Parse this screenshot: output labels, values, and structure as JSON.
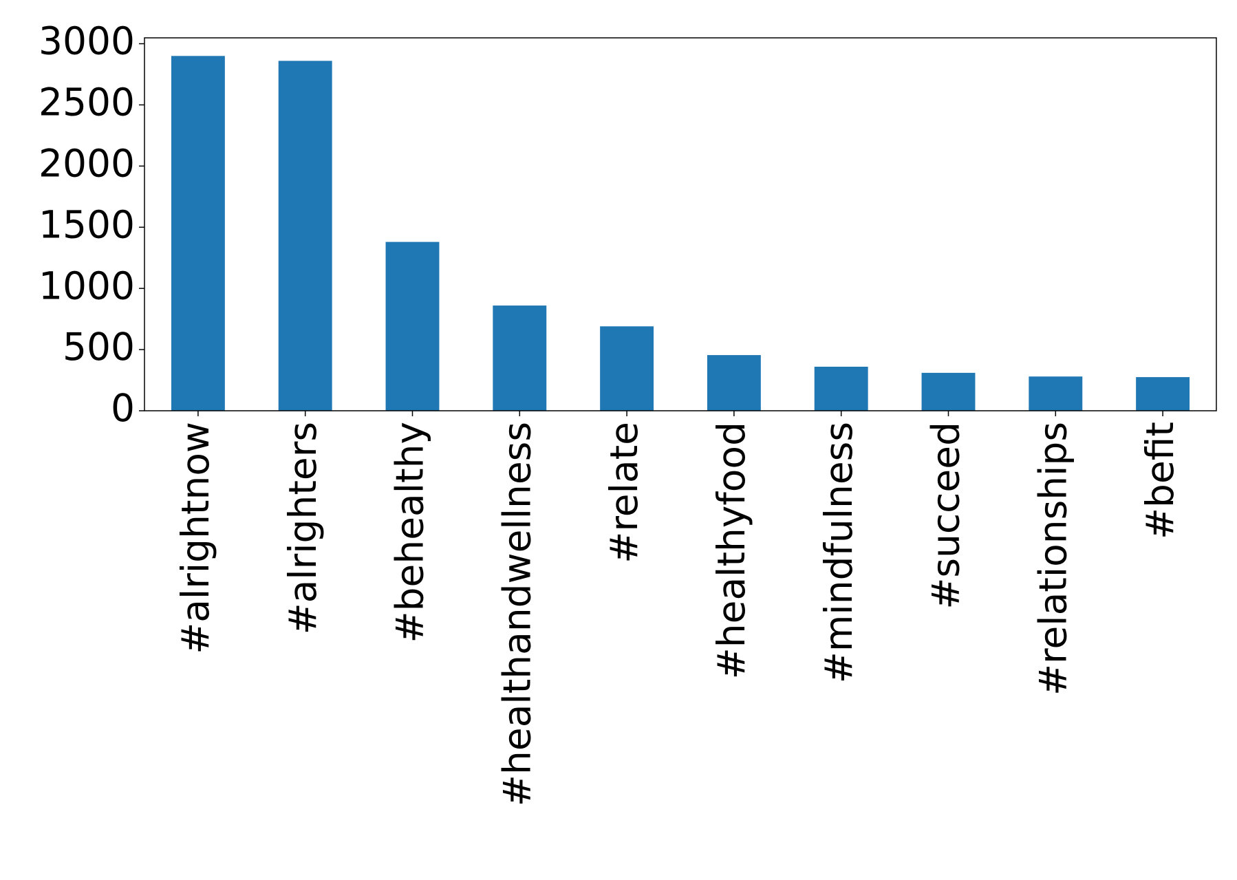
{
  "chart_data": {
    "type": "bar",
    "categories": [
      "#alrightnow",
      "#alrighters",
      "#behealthy",
      "#healthandwellness",
      "#relate",
      "#healthyfood",
      "#mindfulness",
      "#succeed",
      "#relationships",
      "#befit"
    ],
    "values": [
      2900,
      2860,
      1380,
      860,
      690,
      455,
      360,
      310,
      280,
      275
    ],
    "color": "#1f77b4",
    "ylim": [
      0,
      3048
    ],
    "yticks": [
      0,
      500,
      1000,
      1500,
      2000,
      2500,
      3000
    ],
    "grid": false
  }
}
